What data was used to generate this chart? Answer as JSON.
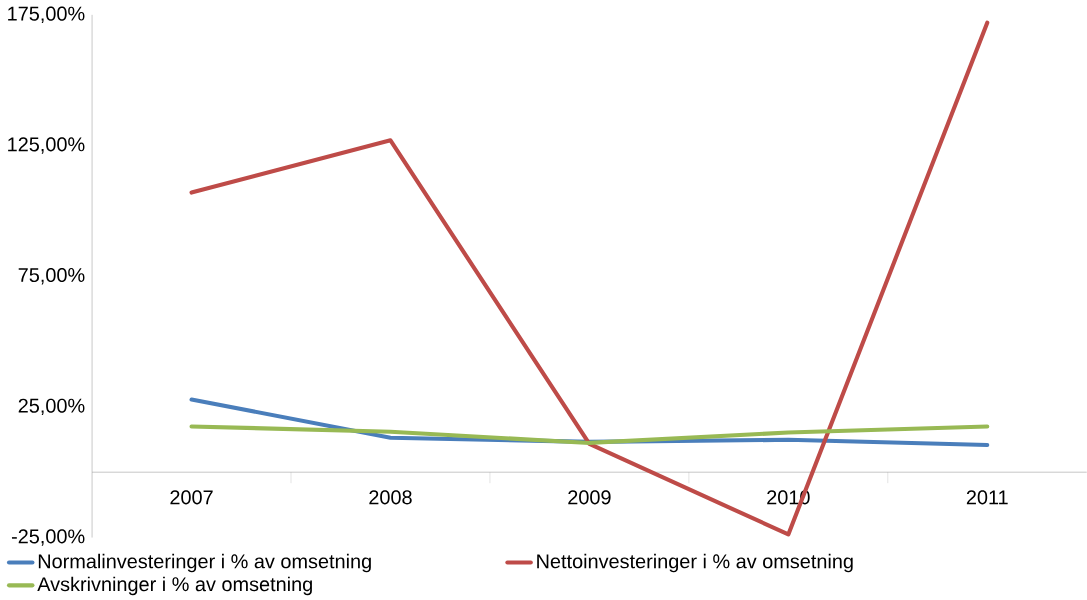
{
  "chart_data": {
    "type": "line",
    "categories": [
      "2007",
      "2008",
      "2009",
      "2010",
      "2011"
    ],
    "series": [
      {
        "name": "Normalinvesteringer i % av omsetning",
        "color": "#4a7ebb",
        "values": [
          27.8,
          13.2,
          11.6,
          12.4,
          10.4
        ]
      },
      {
        "name": "Nettoinvesteringer i % av omsetning",
        "color": "#be4b48",
        "values": [
          107,
          127,
          10.8,
          -23.8,
          172
        ]
      },
      {
        "name": "Avskrivninger i % av omsetning",
        "color": "#98b954",
        "values": [
          17.5,
          15.5,
          11.2,
          15.2,
          17.5
        ]
      }
    ],
    "ylim": [
      -25,
      175
    ],
    "yticks": [
      {
        "value": -25,
        "label": "-25,00%"
      },
      {
        "value": 25,
        "label": "25,00%"
      },
      {
        "value": 75,
        "label": "75,00%"
      },
      {
        "value": 125,
        "label": "125,00%"
      },
      {
        "value": 175,
        "label": "175,00%"
      }
    ],
    "legend": "bottom",
    "marker": "none",
    "line_style": "solid",
    "grid": false
  }
}
